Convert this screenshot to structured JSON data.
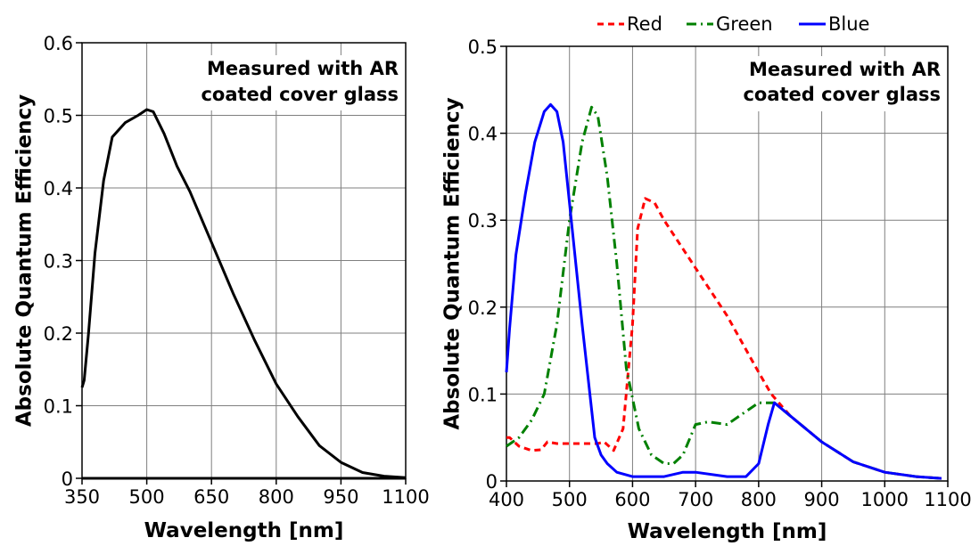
{
  "chart_data": [
    {
      "type": "line",
      "xlabel": "Wavelength [nm]",
      "ylabel": "Absolute Quantum Efficiency",
      "xlim": [
        350,
        1100
      ],
      "ylim": [
        0,
        0.6
      ],
      "xticks": [
        350,
        500,
        650,
        800,
        950,
        1100
      ],
      "xtick_labels": [
        "350",
        "500",
        "650",
        "800",
        "950",
        "1100"
      ],
      "yticks": [
        0,
        0.1,
        0.2,
        0.3,
        0.4,
        0.5,
        0.6
      ],
      "ytick_labels": [
        "0",
        "0.1",
        "0.2",
        "0.3",
        "0.4",
        "0.5",
        "0.6"
      ],
      "grid": true,
      "annotation": [
        "Measured with AR",
        "coated cover glass"
      ],
      "series": [
        {
          "name": "",
          "color": "#000000",
          "dash": "solid",
          "x": [
            350,
            355,
            365,
            380,
            400,
            420,
            450,
            480,
            500,
            515,
            540,
            570,
            600,
            650,
            700,
            750,
            800,
            850,
            900,
            950,
            1000,
            1050,
            1100
          ],
          "y": [
            0.125,
            0.135,
            0.2,
            0.31,
            0.41,
            0.47,
            0.49,
            0.5,
            0.508,
            0.505,
            0.475,
            0.43,
            0.395,
            0.325,
            0.255,
            0.19,
            0.13,
            0.085,
            0.045,
            0.022,
            0.008,
            0.003,
            0.001
          ]
        }
      ]
    },
    {
      "type": "line",
      "xlabel": "Wavelength [nm]",
      "ylabel": "Absolute Quantum Efficiency",
      "xlim": [
        400,
        1100
      ],
      "ylim": [
        0,
        0.5
      ],
      "xticks": [
        400,
        500,
        600,
        700,
        800,
        900,
        1000,
        1100
      ],
      "xtick_labels": [
        "400",
        "500",
        "600",
        "700",
        "800",
        "900",
        "1000",
        "1100"
      ],
      "yticks": [
        0,
        0.1,
        0.2,
        0.3,
        0.4,
        0.5
      ],
      "ytick_labels": [
        "0",
        "0.1",
        "0.2",
        "0.3",
        "0.4",
        "0.5"
      ],
      "grid": true,
      "legend": "top",
      "annotation": [
        "Measured with AR",
        "coated cover glass"
      ],
      "series": [
        {
          "name": "Red",
          "color": "#ff0000",
          "dash": "dashed",
          "x": [
            400,
            405,
            420,
            440,
            455,
            465,
            480,
            500,
            520,
            545,
            555,
            570,
            585,
            600,
            608,
            620,
            635,
            650,
            700,
            750,
            800,
            820,
            850,
            900,
            950,
            1000,
            1050,
            1090
          ],
          "y": [
            0.05,
            0.05,
            0.04,
            0.035,
            0.036,
            0.045,
            0.043,
            0.043,
            0.043,
            0.043,
            0.045,
            0.035,
            0.06,
            0.18,
            0.29,
            0.325,
            0.32,
            0.3,
            0.245,
            0.19,
            0.125,
            0.1,
            0.075,
            0.045,
            0.022,
            0.01,
            0.005,
            0.003
          ]
        },
        {
          "name": "Green",
          "color": "#008000",
          "dash": "dashdot",
          "x": [
            400,
            410,
            420,
            440,
            460,
            480,
            500,
            520,
            535,
            545,
            560,
            575,
            590,
            610,
            630,
            650,
            665,
            680,
            700,
            720,
            750,
            780,
            800,
            825,
            850,
            900,
            950,
            1000,
            1050,
            1090
          ],
          "y": [
            0.04,
            0.045,
            0.05,
            0.07,
            0.1,
            0.18,
            0.3,
            0.39,
            0.43,
            0.42,
            0.35,
            0.25,
            0.13,
            0.06,
            0.03,
            0.02,
            0.02,
            0.03,
            0.065,
            0.068,
            0.065,
            0.08,
            0.09,
            0.09,
            0.075,
            0.045,
            0.022,
            0.01,
            0.005,
            0.003
          ]
        },
        {
          "name": "Blue",
          "color": "#0000ff",
          "dash": "solid",
          "x": [
            400,
            405,
            415,
            430,
            445,
            460,
            470,
            480,
            490,
            500,
            520,
            540,
            550,
            560,
            575,
            600,
            650,
            680,
            700,
            750,
            780,
            800,
            815,
            825,
            850,
            900,
            950,
            1000,
            1050,
            1090
          ],
          "y": [
            0.125,
            0.175,
            0.26,
            0.33,
            0.39,
            0.425,
            0.433,
            0.425,
            0.39,
            0.32,
            0.18,
            0.05,
            0.03,
            0.02,
            0.01,
            0.005,
            0.005,
            0.01,
            0.01,
            0.005,
            0.005,
            0.02,
            0.065,
            0.09,
            0.075,
            0.045,
            0.022,
            0.01,
            0.005,
            0.003
          ]
        }
      ]
    }
  ]
}
